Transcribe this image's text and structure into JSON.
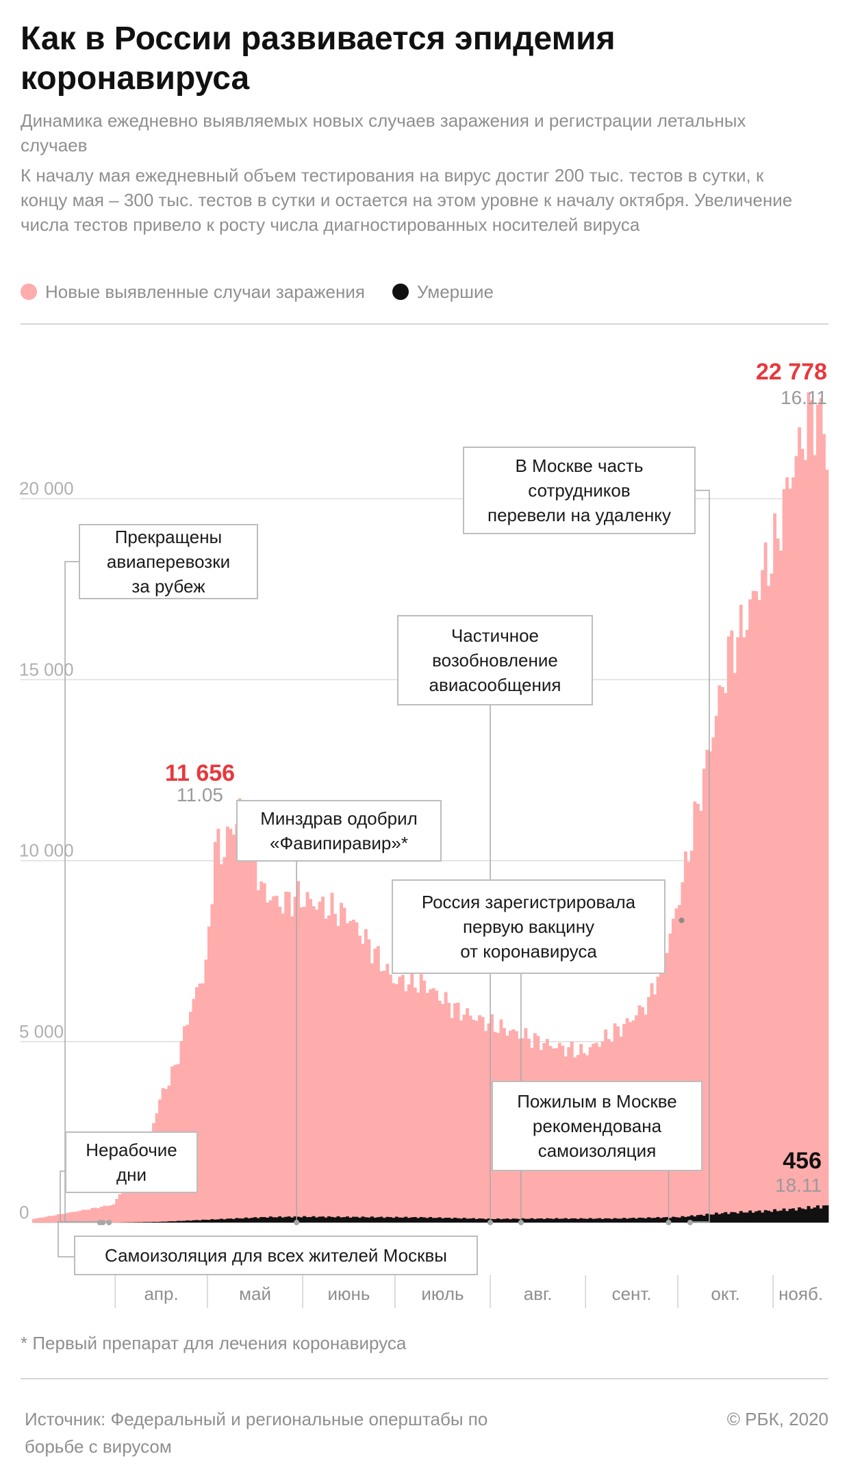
{
  "header": {
    "title": "Как в России развивается эпидемия коронавируса",
    "subtitle": "Динамика ежедневно выявляемых новых случаев заражения и регистрации летальных случаев",
    "description": "К началу мая ежедневный объем тестирования на вирус достиг 200 тыс. тестов в сутки, к концу мая – 300 тыс. тестов в сутки и остается на этом уровне к началу октября. Увеличение числа тестов привело к росту числа диагностированных носителей вируса"
  },
  "legend": {
    "cases_label": "Новые выявленные случаи заражения",
    "deaths_label": "Умершие"
  },
  "colors": {
    "cases": "#ffacac",
    "deaths": "#111111",
    "highlight": "#e8383d",
    "grid": "#dddddd",
    "muted": "#8f8f8f"
  },
  "chart_data": {
    "type": "bar",
    "x_start": "2020-03-05",
    "x_end": "2020-11-18",
    "ylim": [
      0,
      22778
    ],
    "yticks": [
      {
        "value": 0,
        "label": "0"
      },
      {
        "value": 5000,
        "label": "5 000"
      },
      {
        "value": 10000,
        "label": "10 000"
      },
      {
        "value": 15000,
        "label": "15 000"
      },
      {
        "value": 20000,
        "label": "20 000"
      }
    ],
    "month_labels": [
      {
        "label": "апр.",
        "start": "2020-04-01"
      },
      {
        "label": "май",
        "start": "2020-05-01"
      },
      {
        "label": "июнь",
        "start": "2020-06-01"
      },
      {
        "label": "июль",
        "start": "2020-07-01"
      },
      {
        "label": "авг.",
        "start": "2020-08-01"
      },
      {
        "label": "сент.",
        "start": "2020-09-01"
      },
      {
        "label": "окт.",
        "start": "2020-10-01"
      },
      {
        "label": "нояб.",
        "start": "2020-11-01"
      }
    ],
    "series": [
      {
        "name": "Новые выявленные случаи заражения",
        "points": [
          [
            "2020-03-05",
            100
          ],
          [
            "2020-03-25",
            400
          ],
          [
            "2020-03-31",
            500
          ],
          [
            "2020-04-05",
            1200
          ],
          [
            "2020-04-10",
            1800
          ],
          [
            "2020-04-15",
            3400
          ],
          [
            "2020-04-20",
            4300
          ],
          [
            "2020-04-25",
            5900
          ],
          [
            "2020-04-30",
            7100
          ],
          [
            "2020-05-01",
            7900
          ],
          [
            "2020-05-03",
            10600
          ],
          [
            "2020-05-05",
            10100
          ],
          [
            "2020-05-07",
            10700
          ],
          [
            "2020-05-09",
            10800
          ],
          [
            "2020-05-11",
            11656
          ],
          [
            "2020-05-12",
            10900
          ],
          [
            "2020-05-15",
            10600
          ],
          [
            "2020-05-18",
            9200
          ],
          [
            "2020-05-24",
            8800
          ],
          [
            "2020-05-30",
            9000
          ],
          [
            "2020-06-02",
            8900
          ],
          [
            "2020-06-08",
            8700
          ],
          [
            "2020-06-15",
            8500
          ],
          [
            "2020-06-22",
            7700
          ],
          [
            "2020-06-30",
            6700
          ],
          [
            "2020-07-10",
            6600
          ],
          [
            "2020-07-20",
            5900
          ],
          [
            "2020-07-31",
            5500
          ],
          [
            "2020-08-10",
            5200
          ],
          [
            "2020-08-20",
            4900
          ],
          [
            "2020-08-31",
            4700
          ],
          [
            "2020-09-07",
            5100
          ],
          [
            "2020-09-14",
            5500
          ],
          [
            "2020-09-21",
            6100
          ],
          [
            "2020-09-28",
            7900
          ],
          [
            "2020-10-02",
            9400
          ],
          [
            "2020-10-07",
            11500
          ],
          [
            "2020-10-12",
            13600
          ],
          [
            "2020-10-17",
            15700
          ],
          [
            "2020-10-22",
            16500
          ],
          [
            "2020-10-27",
            17700
          ],
          [
            "2020-11-01",
            18600
          ],
          [
            "2020-11-06",
            20600
          ],
          [
            "2020-11-11",
            21900
          ],
          [
            "2020-11-16",
            22778
          ],
          [
            "2020-11-18",
            20800
          ]
        ]
      },
      {
        "name": "Умершие",
        "points": [
          [
            "2020-03-05",
            0
          ],
          [
            "2020-04-01",
            0
          ],
          [
            "2020-04-15",
            20
          ],
          [
            "2020-05-01",
            80
          ],
          [
            "2020-05-20",
            150
          ],
          [
            "2020-06-01",
            160
          ],
          [
            "2020-06-20",
            150
          ],
          [
            "2020-07-10",
            140
          ],
          [
            "2020-08-01",
            100
          ],
          [
            "2020-08-20",
            110
          ],
          [
            "2020-09-10",
            110
          ],
          [
            "2020-10-01",
            150
          ],
          [
            "2020-10-15",
            260
          ],
          [
            "2020-11-01",
            330
          ],
          [
            "2020-11-10",
            390
          ],
          [
            "2020-11-18",
            456
          ]
        ]
      }
    ],
    "peak_labels": [
      {
        "series": "Новые выявленные случаи заражения",
        "date": "2020-05-11",
        "value_text": "11 656",
        "date_text": "11.05"
      },
      {
        "series": "Новые выявленные случаи заражения",
        "date": "2020-11-16",
        "value_text": "22 778",
        "date_text": "16.11"
      },
      {
        "series": "Умершие",
        "date": "2020-11-18",
        "value_text": "456",
        "date_text": "18.11"
      }
    ],
    "annotations": [
      {
        "text": "Прекращены\nавиаперевозки\nза рубеж",
        "date": "2020-03-27"
      },
      {
        "text": "Нерабочие\nдни",
        "date": "2020-03-28"
      },
      {
        "text": "Самоизоляция для всех жителей Москвы",
        "date": "2020-03-30"
      },
      {
        "text": "Минздрав одобрил\n«Фавипиравир»*",
        "date": "2020-05-30"
      },
      {
        "text": "Частичное\nвозобновление\nавиасообщения",
        "date": "2020-08-01"
      },
      {
        "text": "Россия зарегистрировала\nпервую вакцину\nот коронавируса",
        "date": "2020-08-11"
      },
      {
        "text": "Пожилым в Москве\nрекомендована\nсамоизоляция",
        "date": "2020-09-28"
      },
      {
        "text": "В Москве часть\nсотрудников\nперевели на удаленку",
        "date": "2020-10-05"
      }
    ]
  },
  "footnote": "* Первый препарат для лечения коронавируса",
  "footer": {
    "source": "Источник: Федеральный и региональные оперштабы по борьбе с вирусом",
    "copyright": "© РБК, 2020"
  }
}
